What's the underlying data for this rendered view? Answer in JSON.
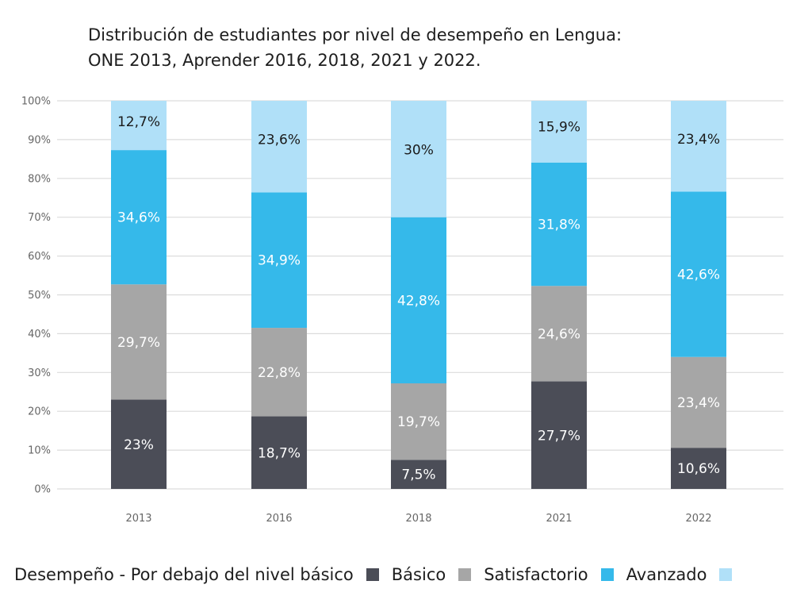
{
  "chart_data": {
    "type": "bar",
    "stacked": true,
    "title": "Distribución de estudiantes por nivel de desempeño en Lengua:",
    "subtitle": "ONE 2013, Aprender 2016, 2018, 2021 y 2022.",
    "categories": [
      "2013",
      "2016",
      "2018",
      "2021",
      "2022"
    ],
    "y_ticks": [
      "0%",
      "10%",
      "20%",
      "30%",
      "40%",
      "50%",
      "60%",
      "70%",
      "80%",
      "90%",
      "100%"
    ],
    "ylim": [
      0,
      100
    ],
    "grid": true,
    "legend_position": "bottom",
    "series": [
      {
        "name": "Desempeño - Por debajo del nivel básico",
        "color": "#4b4d57",
        "label_color": "#ffffff",
        "values": [
          23,
          18.7,
          7.5,
          27.7,
          10.6
        ],
        "labels": [
          "23%",
          "18,7%",
          "7,5%",
          "27,7%",
          "10,6%"
        ]
      },
      {
        "name": "Básico",
        "color": "#a6a6a6",
        "label_color": "#ffffff",
        "values": [
          29.7,
          22.8,
          19.7,
          24.6,
          23.4
        ],
        "labels": [
          "29,7%",
          "22,8%",
          "19,7%",
          "24,6%",
          "23,4%"
        ]
      },
      {
        "name": "Satisfactorio",
        "color": "#35b9ea",
        "label_color": "#ffffff",
        "values": [
          34.6,
          34.9,
          42.8,
          31.8,
          42.6
        ],
        "labels": [
          "34,6%",
          "34,9%",
          "42,8%",
          "31,8%",
          "42,6%"
        ]
      },
      {
        "name": "Avanzado",
        "color": "#b0e0f8",
        "label_color": "#1a1a1a",
        "values": [
          12.7,
          23.6,
          30,
          15.9,
          23.4
        ],
        "labels": [
          "12,7%",
          "23,6%",
          "30%",
          "15,9%",
          "23,4%"
        ]
      }
    ]
  }
}
